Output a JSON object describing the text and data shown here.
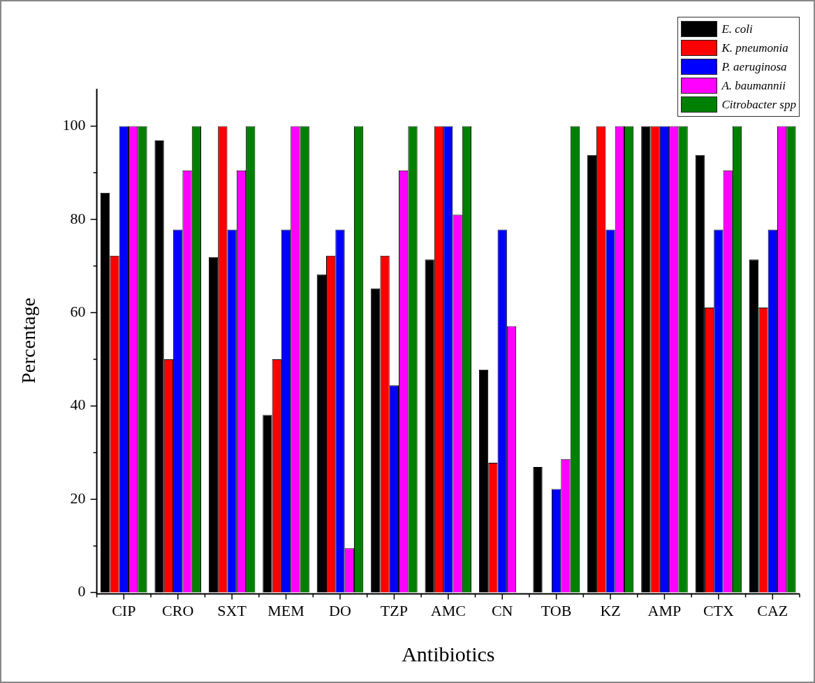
{
  "chart_data": {
    "type": "bar",
    "xlabel": "Antibiotics",
    "ylabel": "Percentage",
    "categories": [
      "CIP",
      "CRO",
      "SXT",
      "MEM",
      "DO",
      "TZP",
      "AMC",
      "CN",
      "TOB",
      "KZ",
      "AMP",
      "CTX",
      "CAZ"
    ],
    "series": [
      {
        "name": "E. coli",
        "color": "#000000",
        "values": [
          85.7,
          96.9,
          71.9,
          38.1,
          68.2,
          65.2,
          71.4,
          47.8,
          26.9,
          93.8,
          100,
          93.8,
          71.4
        ]
      },
      {
        "name": "K. pneumonia",
        "color": "#ff0000",
        "values": [
          72.2,
          50,
          100,
          50,
          72.2,
          72.2,
          100,
          27.8,
          0,
          100,
          100,
          61.1,
          61.1
        ]
      },
      {
        "name": "P. aeruginosa",
        "color": "#0000ff",
        "values": [
          100,
          77.8,
          77.8,
          77.8,
          77.8,
          44.4,
          100,
          77.8,
          22.2,
          77.8,
          100,
          77.8,
          77.8
        ]
      },
      {
        "name": "A. baumannii",
        "color": "#ff00ff",
        "values": [
          100,
          90.5,
          90.5,
          100,
          9.5,
          90.5,
          81,
          57.1,
          28.6,
          100,
          100,
          90.5,
          100
        ]
      },
      {
        "name": "Citrobacter spp",
        "color": "#008000",
        "values": [
          100,
          100,
          100,
          100,
          100,
          100,
          100,
          0,
          100,
          100,
          100,
          100,
          100
        ]
      }
    ],
    "ylim": [
      0,
      108
    ],
    "yticks": [
      0,
      20,
      40,
      60,
      80,
      100
    ],
    "grid": false,
    "legend": "top right"
  }
}
